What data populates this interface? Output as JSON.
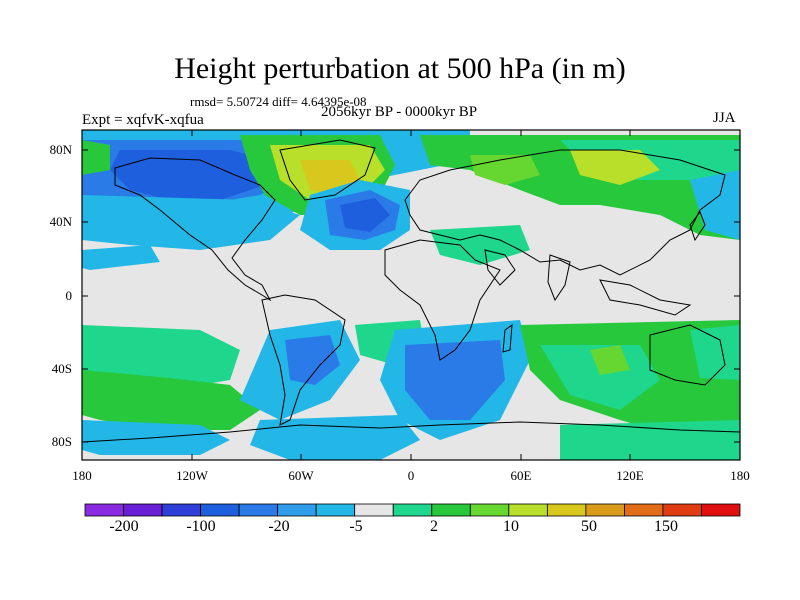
{
  "title": "Height perturbation at 500 hPa (in m)",
  "stats": "rmsd= 5.50724 diff= 4.64395e-08",
  "expt": "Expt = xqfvK-xqfua",
  "period": "2056kyr BP - 0000kyr BP",
  "season": "JJA",
  "lat_labels": [
    "80N",
    "40N",
    "0",
    "40S",
    "80S"
  ],
  "lon_labels": [
    "180",
    "120W",
    "60W",
    "0",
    "60E",
    "120E",
    "180"
  ],
  "colorbar": {
    "colors": [
      "#8a2be2",
      "#6a1fd6",
      "#2f3fd8",
      "#1d5fdc",
      "#2a7be8",
      "#2f9de9",
      "#22b7e6",
      "#e6e6e6",
      "#1ed68c",
      "#28c83c",
      "#66d630",
      "#b8e02a",
      "#d8c81e",
      "#d89c1a",
      "#e06c18",
      "#e03c12",
      "#e01010"
    ],
    "labels": [
      "-200",
      "-100",
      "-20",
      "-5",
      "2",
      "10",
      "50",
      "150"
    ]
  }
}
